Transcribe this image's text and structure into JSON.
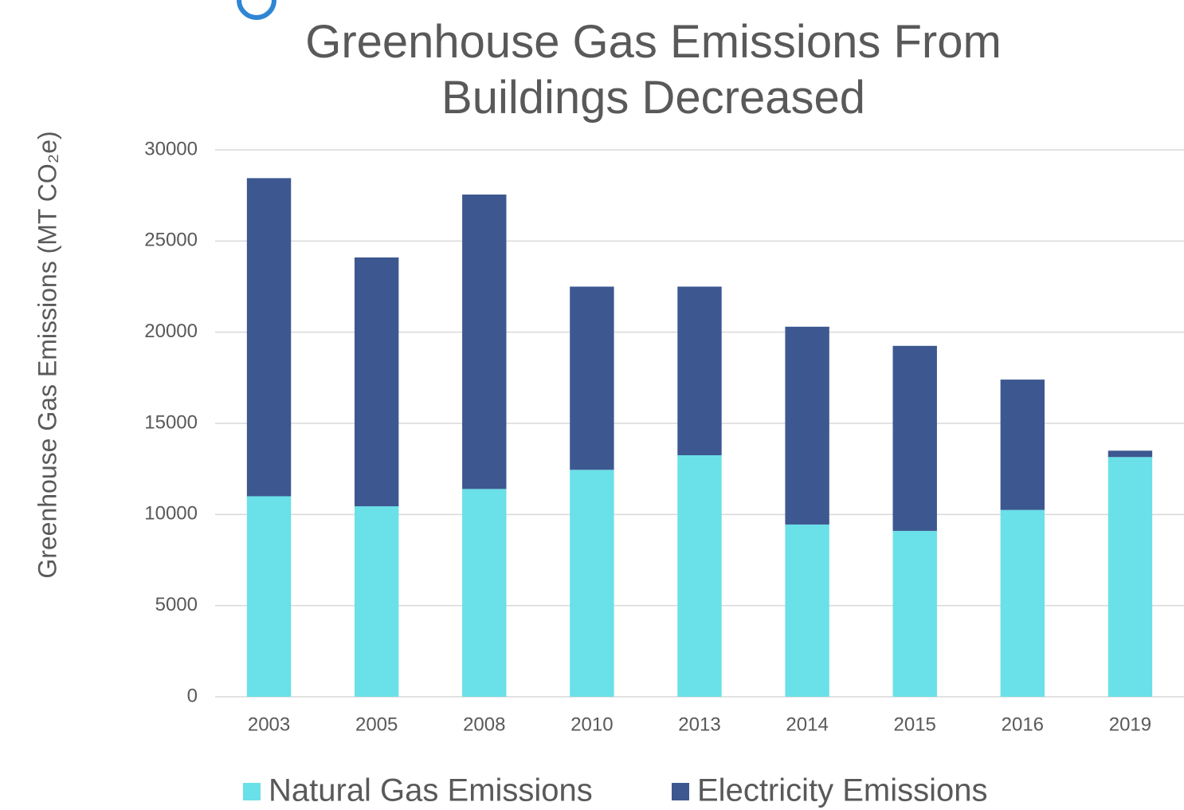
{
  "chart_data": {
    "type": "stacked_bar",
    "title": "Greenhouse Gas Emissions From Buildings Decreased",
    "y_label": "Greenhouse Gas Emissions (MT CO₂e)",
    "categories": [
      "2003",
      "2005",
      "2008",
      "2010",
      "2013",
      "2014",
      "2015",
      "2016",
      "2019"
    ],
    "series": [
      {
        "name": "Natural Gas Emissions",
        "color": "#6ae0e8",
        "values": [
          11000,
          10450,
          11400,
          12450,
          13250,
          9450,
          9100,
          10250,
          13150
        ]
      },
      {
        "name": "Electricity Emissions",
        "color": "#3d5890",
        "values": [
          17450,
          13650,
          16150,
          10050,
          9250,
          10850,
          10150,
          7150,
          350
        ]
      }
    ],
    "ylim": [
      0,
      30000
    ],
    "yticks": [
      0,
      5000,
      10000,
      15000,
      20000,
      25000,
      30000
    ],
    "grid": true,
    "legend": "bottom"
  }
}
